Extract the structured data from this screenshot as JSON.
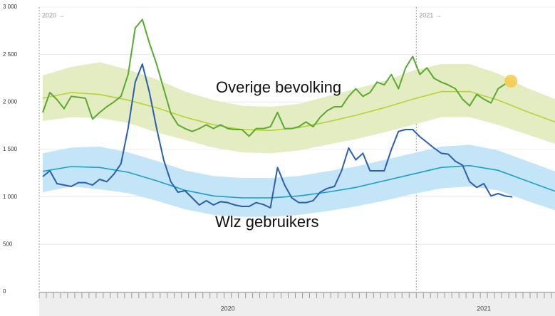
{
  "chart_data": {
    "type": "line",
    "ylim": [
      0,
      3000
    ],
    "yticks": [
      0,
      500,
      {
        "value": 1000,
        "label": "1 000"
      },
      {
        "value": 1500,
        "label": "1 500"
      },
      {
        "value": 2000,
        "label": "2 000"
      },
      {
        "value": 2500,
        "label": "2 500"
      },
      {
        "value": 3000,
        "label": "3 000"
      }
    ],
    "xlim": [
      0.5,
      73
    ],
    "xticks": [
      {
        "value": 27,
        "label": "2020"
      },
      {
        "value": 63,
        "label": "2021"
      }
    ],
    "grid": true,
    "markers": [
      {
        "x": 0.5,
        "label": "2020 →"
      },
      {
        "x": 53.5,
        "label": "2021 →"
      }
    ],
    "series": [
      {
        "name": "Overige bevolking",
        "color": "#5aaa32",
        "x": [
          1,
          2,
          3,
          4,
          5,
          6,
          7,
          8,
          9,
          10,
          11,
          12,
          13,
          14,
          15,
          16,
          17,
          18,
          19,
          20,
          21,
          22,
          23,
          24,
          25,
          26,
          27,
          28,
          29,
          30,
          31,
          32,
          33,
          34,
          35,
          36,
          37,
          38,
          39,
          40,
          41,
          42,
          43,
          44,
          45,
          46,
          47,
          48,
          49,
          50,
          51,
          52,
          53,
          54,
          55,
          56,
          57,
          58,
          59,
          60,
          61,
          62,
          63,
          64,
          65,
          66
        ],
        "values": [
          1890,
          2100,
          2025,
          1930,
          2060,
          2050,
          2040,
          1820,
          1890,
          1950,
          2000,
          2060,
          2290,
          2780,
          2870,
          2620,
          2400,
          2140,
          1880,
          1760,
          1720,
          1690,
          1720,
          1760,
          1720,
          1760,
          1720,
          1710,
          1710,
          1640,
          1720,
          1720,
          1740,
          1890,
          1720,
          1720,
          1740,
          1790,
          1740,
          1840,
          1910,
          1950,
          1950,
          2060,
          2140,
          2060,
          2100,
          2210,
          2180,
          2290,
          2140,
          2360,
          2480,
          2290,
          2360,
          2250,
          2210,
          2180,
          2140,
          2030,
          1960,
          2080,
          2030,
          1990,
          2140,
          2190
        ]
      },
      {
        "name": "Wlz gebruikers",
        "color": "#2a5fb0",
        "x": [
          1,
          2,
          3,
          4,
          5,
          6,
          7,
          8,
          9,
          10,
          11,
          12,
          13,
          14,
          15,
          16,
          17,
          18,
          19,
          20,
          21,
          22,
          23,
          24,
          25,
          26,
          27,
          28,
          29,
          30,
          31,
          32,
          33,
          34,
          35,
          36,
          37,
          38,
          39,
          40,
          41,
          42,
          43,
          44,
          45,
          46,
          47,
          48,
          49,
          50,
          51,
          52,
          53,
          54,
          55,
          56,
          57,
          58,
          59,
          60,
          61,
          62,
          63,
          64,
          65,
          66,
          67
        ],
        "values": [
          1215,
          1275,
          1140,
          1125,
          1110,
          1150,
          1150,
          1125,
          1185,
          1160,
          1240,
          1350,
          1725,
          2210,
          2400,
          2100,
          1725,
          1390,
          1160,
          1050,
          1065,
          990,
          915,
          960,
          915,
          950,
          940,
          915,
          900,
          900,
          940,
          920,
          885,
          1310,
          1125,
          990,
          940,
          940,
          960,
          1050,
          1090,
          1110,
          1275,
          1515,
          1390,
          1460,
          1275,
          1275,
          1275,
          1500,
          1690,
          1710,
          1710,
          1635,
          1575,
          1515,
          1460,
          1450,
          1375,
          1335,
          1160,
          1100,
          1140,
          1010,
          1035,
          1010,
          1000
        ]
      }
    ],
    "expected": [
      {
        "color": "#b5d334",
        "band_color": "#e4ecc2",
        "x": [
          1,
          5,
          9,
          13,
          17,
          21,
          25,
          29,
          33,
          37,
          41,
          45,
          49,
          53,
          57,
          61,
          65,
          69,
          73
        ],
        "values": [
          2040,
          2100,
          2080,
          2020,
          1940,
          1840,
          1760,
          1710,
          1700,
          1730,
          1790,
          1860,
          1940,
          2030,
          2110,
          2110,
          2020,
          1900,
          1790
        ],
        "upper": [
          2280,
          2370,
          2420,
          2340,
          2240,
          2110,
          2020,
          1960,
          1950,
          1980,
          2060,
          2140,
          2220,
          2330,
          2400,
          2400,
          2300,
          2150,
          2030
        ],
        "lower": [
          1800,
          1840,
          1830,
          1780,
          1680,
          1600,
          1520,
          1470,
          1460,
          1490,
          1550,
          1610,
          1680,
          1760,
          1840,
          1840,
          1760,
          1660,
          1560
        ]
      },
      {
        "color": "#1aa0c8",
        "band_color": "#c4e4f8",
        "x": [
          1,
          5,
          9,
          13,
          17,
          21,
          25,
          29,
          33,
          37,
          41,
          45,
          49,
          53,
          57,
          61,
          65,
          69,
          73
        ],
        "values": [
          1270,
          1320,
          1310,
          1260,
          1170,
          1070,
          1010,
          990,
          990,
          1010,
          1050,
          1100,
          1170,
          1240,
          1310,
          1330,
          1280,
          1170,
          1060
        ],
        "upper": [
          1460,
          1520,
          1530,
          1470,
          1380,
          1280,
          1220,
          1200,
          1200,
          1220,
          1270,
          1320,
          1390,
          1460,
          1530,
          1550,
          1490,
          1380,
          1270
        ],
        "lower": [
          1050,
          1110,
          1080,
          1040,
          960,
          870,
          810,
          790,
          790,
          810,
          850,
          900,
          960,
          1030,
          1090,
          1110,
          1070,
          960,
          860
        ]
      }
    ]
  }
}
